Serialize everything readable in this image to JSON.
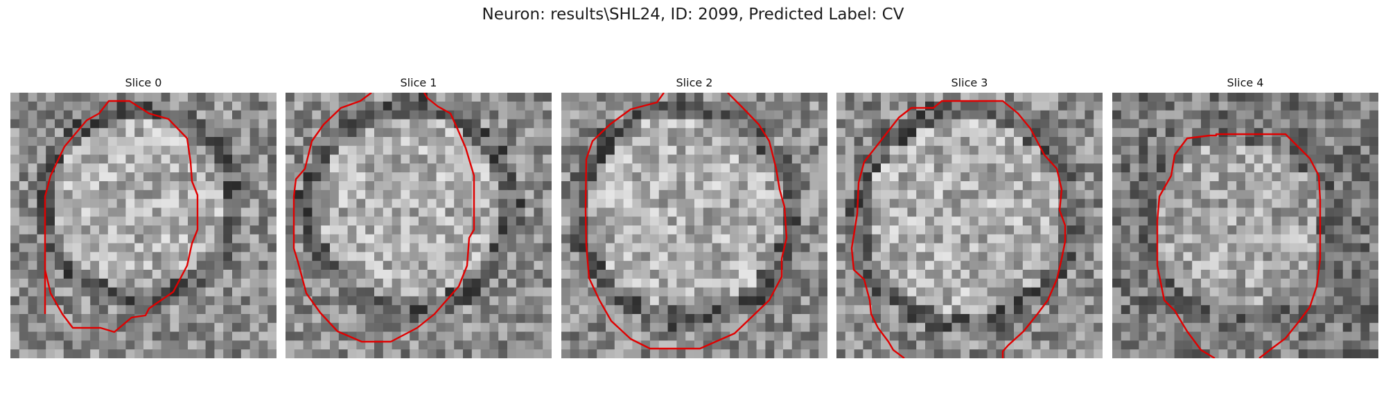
{
  "figure": {
    "title": "Neuron: results\\SHL24, ID: 2099, Predicted Label: CV"
  },
  "slices": [
    {
      "title": "Slice 0"
    },
    {
      "title": "Slice 1"
    },
    {
      "title": "Slice 2"
    },
    {
      "title": "Slice 3"
    },
    {
      "title": "Slice 4"
    }
  ],
  "colors": {
    "contour": "#e00000",
    "background": "#ffffff"
  }
}
